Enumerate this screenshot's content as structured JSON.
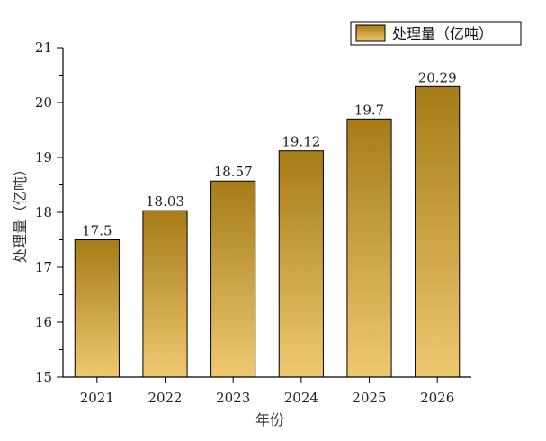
{
  "chart_data": {
    "type": "bar",
    "categories": [
      "2021",
      "2022",
      "2023",
      "2024",
      "2025",
      "2026"
    ],
    "series": [
      {
        "name": "处理量（亿吨）",
        "values": [
          17.5,
          18.03,
          18.57,
          19.12,
          19.7,
          20.29
        ]
      }
    ],
    "data_labels": [
      "17.5",
      "18.03",
      "18.57",
      "19.12",
      "19.7",
      "20.29"
    ],
    "xlabel": "年份",
    "ylabel": "处理量（亿吨）",
    "ylim": [
      15,
      21
    ],
    "yticks": [
      15,
      16,
      17,
      18,
      19,
      20,
      21
    ],
    "grid": false,
    "legend_position": "top-right",
    "colors": {
      "bar_top": "#a67c18",
      "bar_bottom": "#f0c870",
      "bar_stroke": "#000000"
    }
  }
}
